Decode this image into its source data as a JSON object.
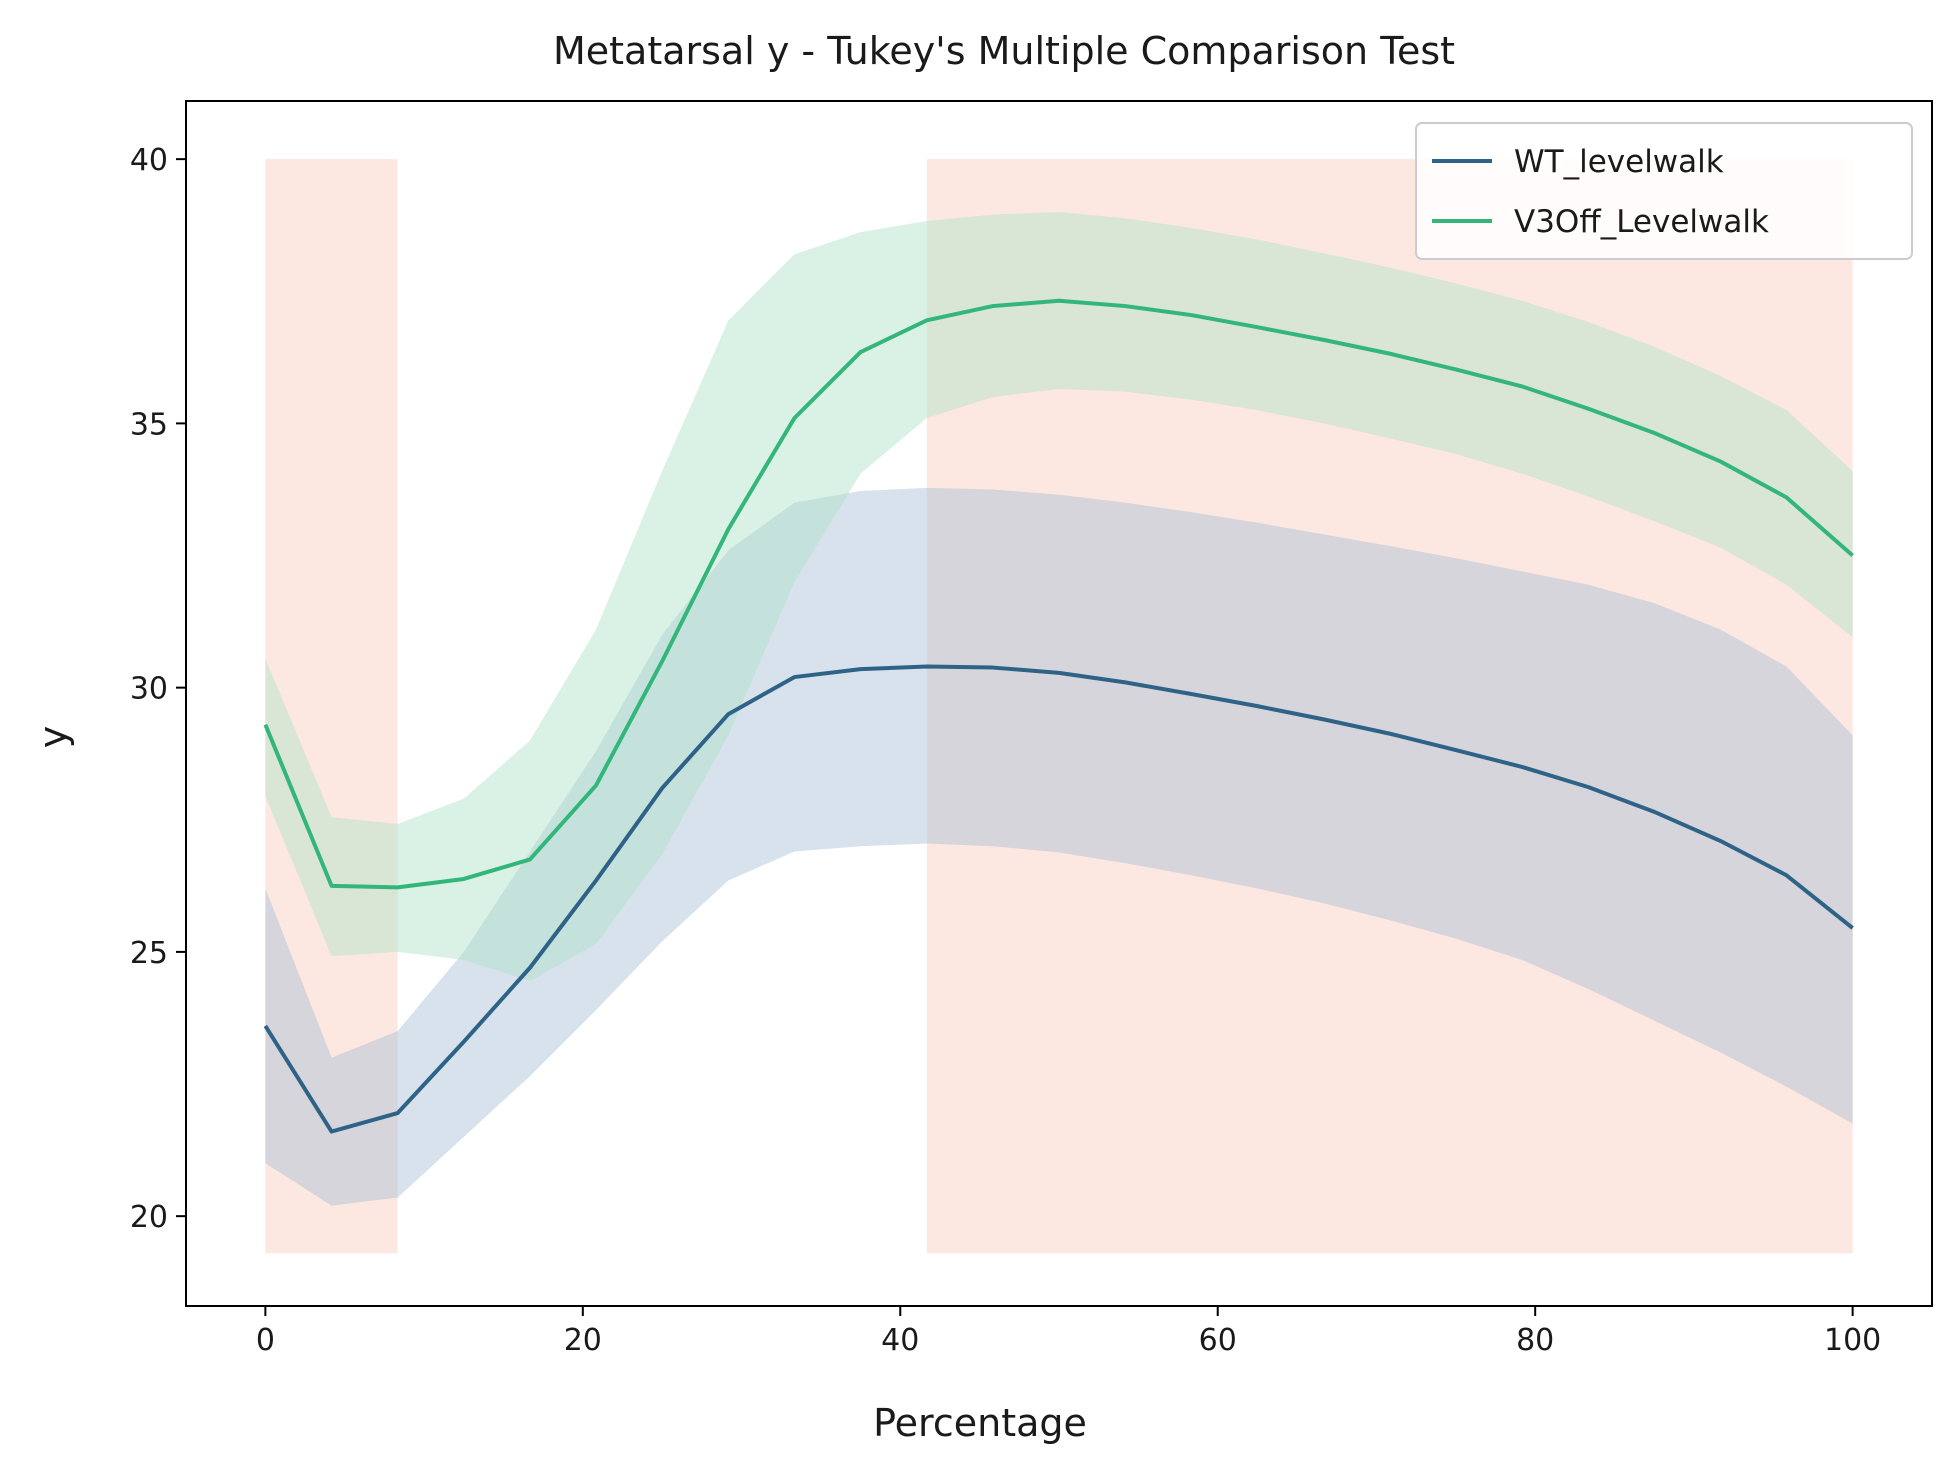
{
  "chart_data": {
    "type": "line",
    "title": "Metatarsal y - Tukey's Multiple Comparison Test",
    "xlabel": "Percentage",
    "ylabel": "y",
    "xlim": [
      -5,
      105
    ],
    "ylim": [
      18.3,
      41.1
    ],
    "xticks": [
      0,
      20,
      40,
      60,
      80,
      100
    ],
    "yticks": [
      20,
      25,
      30,
      35,
      40
    ],
    "grid": false,
    "legend_position": "top-right",
    "significance_regions": {
      "color": "#fde3dc",
      "y_range": [
        19.3,
        40.0
      ],
      "x_ranges": [
        [
          0,
          8.33
        ],
        [
          41.67,
          100
        ]
      ]
    },
    "x": [
      0,
      4.17,
      8.33,
      12.5,
      16.67,
      20.83,
      25,
      29.17,
      33.33,
      37.5,
      41.67,
      45.83,
      50,
      54.17,
      58.33,
      62.5,
      66.67,
      70.83,
      75,
      79.17,
      83.33,
      87.5,
      91.67,
      95.83,
      100
    ],
    "series": [
      {
        "name": "WT_levelwalk",
        "color": "#2e6387",
        "band_color": "#a7bed5",
        "values": [
          23.6,
          21.6,
          21.95,
          23.3,
          24.7,
          26.35,
          28.1,
          29.5,
          30.2,
          30.35,
          30.4,
          30.38,
          30.28,
          30.1,
          29.88,
          29.65,
          29.4,
          29.13,
          28.82,
          28.5,
          28.12,
          27.65,
          27.1,
          26.45,
          25.45
        ],
        "upper": [
          26.2,
          23.0,
          23.5,
          25.0,
          26.9,
          28.8,
          31.0,
          32.6,
          33.5,
          33.72,
          33.78,
          33.75,
          33.65,
          33.5,
          33.32,
          33.12,
          32.9,
          32.68,
          32.45,
          32.2,
          31.95,
          31.6,
          31.1,
          30.4,
          29.1
        ],
        "lower": [
          21.0,
          20.2,
          20.35,
          21.5,
          22.65,
          23.9,
          25.2,
          26.35,
          26.9,
          27.0,
          27.05,
          27.0,
          26.88,
          26.68,
          26.45,
          26.2,
          25.92,
          25.6,
          25.25,
          24.85,
          24.3,
          23.7,
          23.1,
          22.45,
          21.75
        ]
      },
      {
        "name": "V3Off_Levelwalk",
        "color": "#33b679",
        "band_color": "#aee2c8",
        "values": [
          29.3,
          26.25,
          26.22,
          26.38,
          26.75,
          28.15,
          30.5,
          33.0,
          35.1,
          36.35,
          36.95,
          37.22,
          37.32,
          37.22,
          37.05,
          36.82,
          36.58,
          36.32,
          36.02,
          35.7,
          35.28,
          34.82,
          34.28,
          33.6,
          32.5
        ],
        "upper": [
          30.55,
          27.55,
          27.42,
          27.9,
          29.0,
          31.1,
          34.1,
          36.95,
          38.2,
          38.62,
          38.83,
          38.95,
          39.0,
          38.88,
          38.7,
          38.48,
          38.22,
          37.95,
          37.65,
          37.32,
          36.92,
          36.45,
          35.9,
          35.25,
          34.1
        ],
        "lower": [
          27.95,
          24.92,
          25.0,
          24.85,
          24.45,
          25.15,
          26.85,
          29.1,
          32.0,
          34.05,
          35.1,
          35.5,
          35.65,
          35.6,
          35.45,
          35.25,
          35.0,
          34.72,
          34.42,
          34.05,
          33.62,
          33.15,
          32.65,
          31.95,
          30.95
        ]
      }
    ]
  }
}
